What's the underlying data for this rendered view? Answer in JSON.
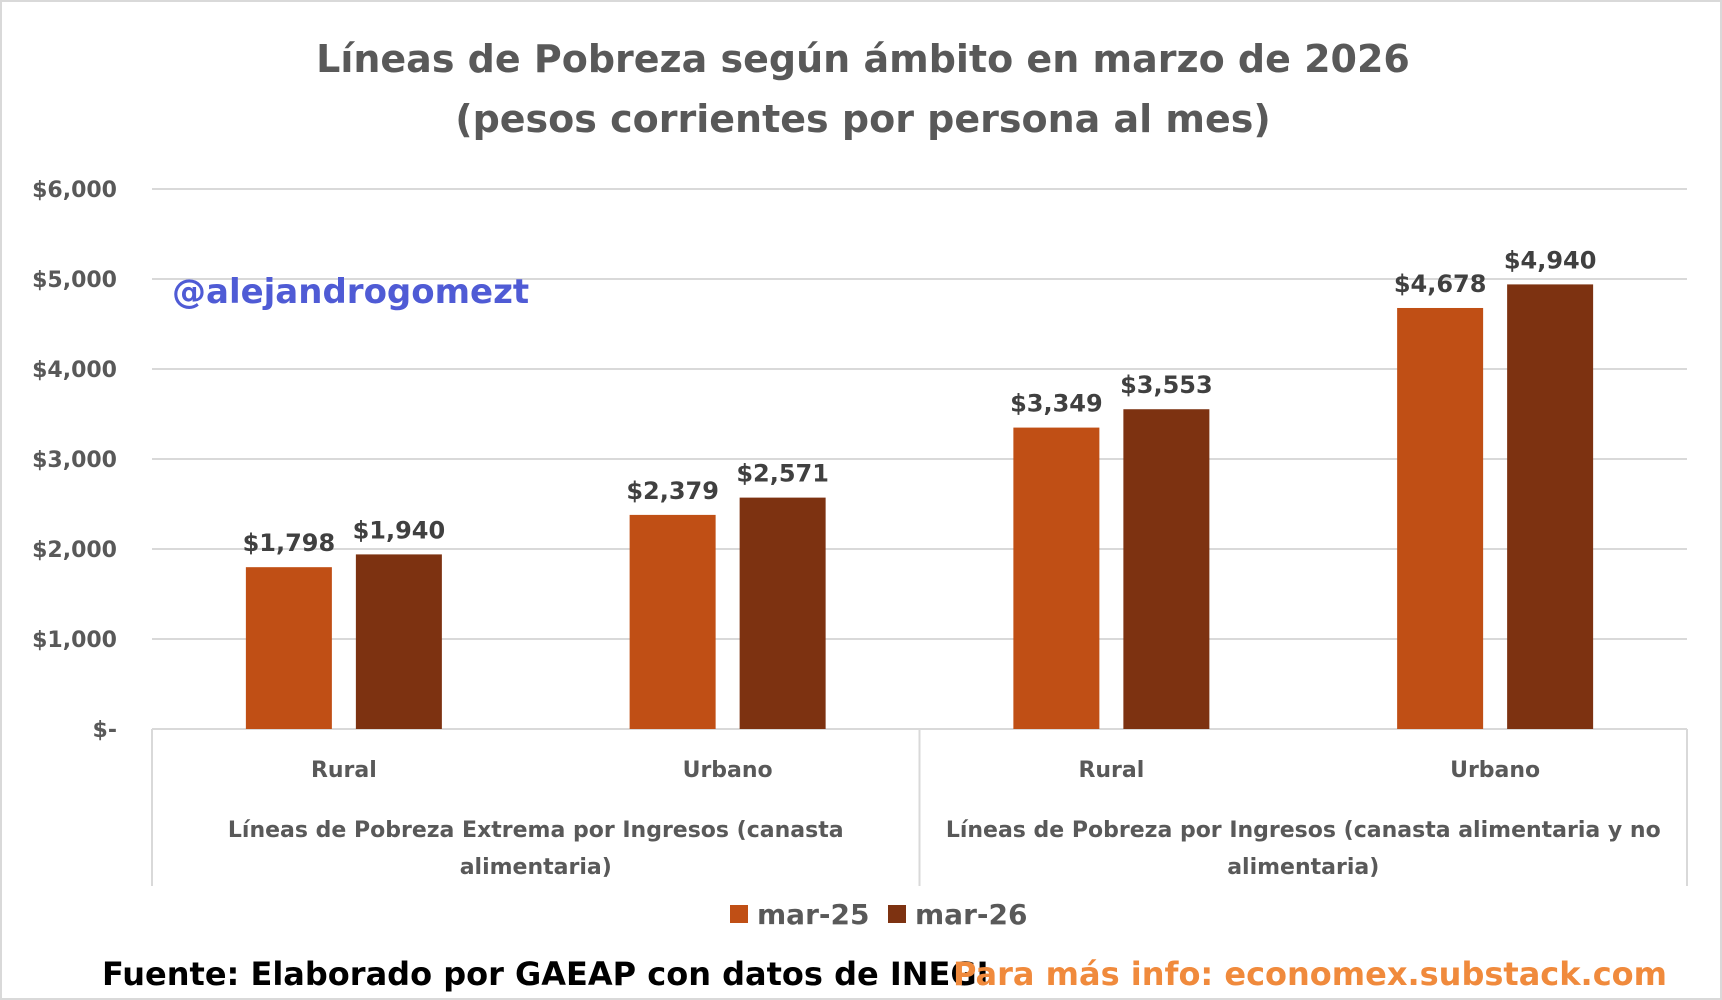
{
  "colors": {
    "series_1": "#c04f15",
    "series_2": "#7d3211",
    "gridline": "#d9d9d9",
    "watermark": "#4f5bd5",
    "link": "#f08a3c"
  },
  "watermark": "@alejandrogomezt",
  "footer": {
    "source": "Fuente: Elaborado por GAEAP con datos de INEGI",
    "link": "Para más info: economex.substack.com"
  },
  "chart_data": {
    "type": "bar",
    "title": [
      "Líneas de Pobreza según ámbito en marzo de 2026",
      "(pesos corrientes por persona al mes)"
    ],
    "xlabel": "",
    "ylabel": "",
    "ylim": [
      0,
      6000
    ],
    "yticks": [
      0,
      1000,
      2000,
      3000,
      4000,
      5000,
      6000
    ],
    "ytick_labels": [
      "$-",
      "$1,000",
      "$2,000",
      "$3,000",
      "$4,000",
      "$5,000",
      "$6,000"
    ],
    "grid": true,
    "legend_position": "bottom",
    "categories": [
      "Rural",
      "Urbano",
      "Rural",
      "Urbano"
    ],
    "groups": [
      {
        "label": [
          "Líneas de Pobreza Extrema por Ingresos (canasta",
          "alimentaria)"
        ],
        "categories": [
          0,
          1
        ]
      },
      {
        "label": [
          "Líneas de Pobreza por Ingresos (canasta alimentaria y no",
          "alimentaria)"
        ],
        "categories": [
          2,
          3
        ]
      }
    ],
    "series": [
      {
        "name": "mar-25",
        "values": [
          1798,
          2379,
          3349,
          4678
        ],
        "labels": [
          "$1,798",
          "$2,379",
          "$3,349",
          "$4,678"
        ]
      },
      {
        "name": "mar-26",
        "values": [
          1940,
          2571,
          3553,
          4940
        ],
        "labels": [
          "$1,940",
          "$2,571",
          "$3,553",
          "$4,940"
        ]
      }
    ]
  }
}
